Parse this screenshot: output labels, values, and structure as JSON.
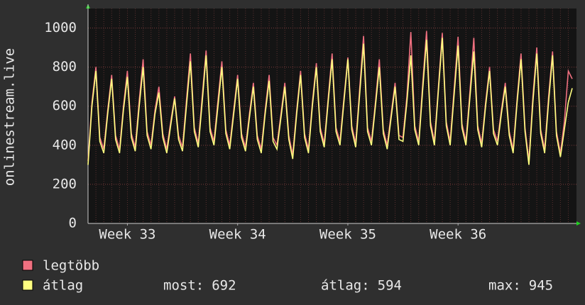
{
  "chart_data": {
    "type": "line",
    "y_label": "onlinestream.live",
    "categories": [
      null,
      null,
      null,
      null,
      null,
      null,
      null,
      null,
      null,
      null,
      "Week 33",
      null,
      null,
      null,
      null,
      null,
      null,
      null,
      null,
      null,
      null,
      null,
      null,
      null,
      null,
      null,
      null,
      null,
      null,
      null,
      null,
      null,
      null,
      null,
      null,
      null,
      null,
      null,
      "Week 34",
      null,
      null,
      null,
      null,
      null,
      null,
      null,
      null,
      null,
      null,
      null,
      null,
      null,
      null,
      null,
      null,
      null,
      null,
      null,
      null,
      null,
      null,
      null,
      null,
      null,
      null,
      null,
      "Week 35",
      null,
      null,
      null,
      null,
      null,
      null,
      null,
      null,
      null,
      null,
      null,
      null,
      null,
      null,
      null,
      null,
      null,
      null,
      null,
      null,
      null,
      null,
      null,
      null,
      null,
      null,
      null,
      "Week 36",
      null,
      null,
      null,
      null,
      null,
      null,
      null,
      null,
      null,
      null,
      null,
      null,
      null,
      null,
      null,
      null,
      null,
      null,
      null,
      null,
      null,
      null,
      null,
      null,
      null,
      null,
      null,
      null,
      null
    ],
    "series": [
      {
        "name": "legtöbb",
        "color": "#f07080",
        "values": [
          320,
          620,
          800,
          440,
          380,
          580,
          760,
          450,
          380,
          600,
          780,
          460,
          390,
          630,
          840,
          470,
          400,
          580,
          700,
          460,
          380,
          520,
          650,
          450,
          390,
          630,
          870,
          490,
          410,
          650,
          885,
          490,
          420,
          630,
          830,
          480,
          400,
          580,
          760,
          460,
          390,
          560,
          720,
          450,
          380,
          580,
          760,
          440,
          400,
          560,
          720,
          450,
          350,
          580,
          780,
          460,
          380,
          620,
          820,
          490,
          410,
          640,
          870,
          490,
          420,
          640,
          850,
          500,
          410,
          690,
          960,
          490,
          420,
          620,
          840,
          480,
          400,
          560,
          720,
          450,
          440,
          650,
          980,
          500,
          420,
          710,
          985,
          520,
          420,
          700,
          975,
          520,
          420,
          690,
          955,
          510,
          420,
          670,
          950,
          500,
          410,
          620,
          800,
          480,
          420,
          580,
          720,
          470,
          380,
          640,
          870,
          490,
          320,
          650,
          900,
          480,
          380,
          650,
          880,
          470,
          360,
          520,
          780,
          740
        ]
      },
      {
        "name": "átlag",
        "color": "#ffff80",
        "values": [
          300,
          600,
          780,
          420,
          360,
          560,
          740,
          430,
          360,
          580,
          750,
          440,
          370,
          600,
          800,
          450,
          380,
          560,
          670,
          440,
          360,
          500,
          640,
          430,
          370,
          600,
          830,
          470,
          390,
          620,
          860,
          470,
          400,
          600,
          800,
          460,
          380,
          560,
          740,
          440,
          370,
          540,
          700,
          430,
          360,
          560,
          730,
          420,
          380,
          540,
          700,
          430,
          330,
          560,
          760,
          440,
          360,
          600,
          800,
          470,
          390,
          620,
          840,
          470,
          400,
          620,
          840,
          480,
          390,
          660,
          920,
          470,
          400,
          600,
          800,
          460,
          380,
          540,
          700,
          430,
          420,
          620,
          860,
          480,
          400,
          680,
          940,
          500,
          400,
          680,
          950,
          500,
          400,
          660,
          910,
          490,
          400,
          640,
          880,
          480,
          390,
          600,
          780,
          460,
          400,
          560,
          700,
          450,
          360,
          620,
          840,
          470,
          300,
          620,
          870,
          460,
          360,
          620,
          860,
          450,
          340,
          480,
          620,
          692
        ]
      }
    ],
    "stats": [
      {
        "label": "most:",
        "value": 692
      },
      {
        "label": "átlag:",
        "value": 594
      },
      {
        "label": "max:",
        "value": 945
      }
    ],
    "ylim": [
      0,
      1100
    ],
    "yticks": [
      0,
      200,
      400,
      600,
      800,
      1000
    ],
    "grid": true
  }
}
